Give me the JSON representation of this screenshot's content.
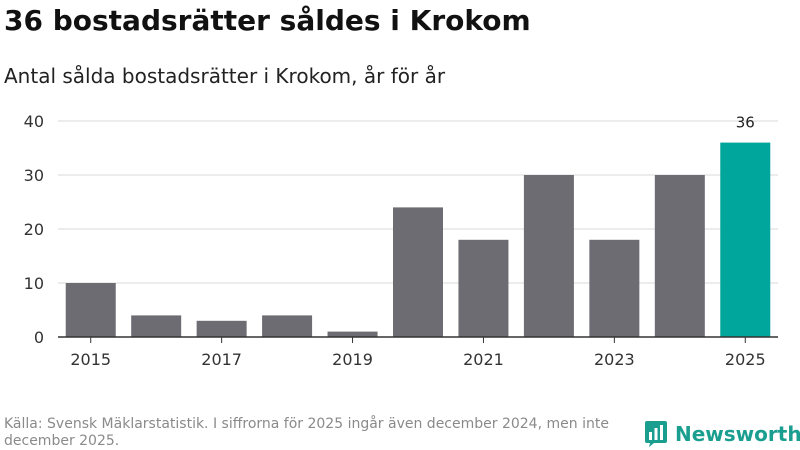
{
  "title": "36 bostadsrätter såldes i Krokom",
  "subtitle": "Antal sålda bostadsrätter i Krokom, år för år",
  "footer": "Källa: Svensk Mäklarstatistik. I siffrorna för 2025 ingår även december 2024, men inte december 2025.",
  "logo": {
    "text": "Newsworthy",
    "color": "#1a9e8f"
  },
  "colors": {
    "bar": "#6d6c72",
    "highlight": "#00a59b",
    "grid": "#d9d9d9",
    "axis": "#333333"
  },
  "chart_data": {
    "type": "bar",
    "categories": [
      "2015",
      "2016",
      "2017",
      "2018",
      "2019",
      "2020",
      "2021",
      "2022",
      "2023",
      "2024",
      "2025"
    ],
    "values": [
      10,
      4,
      3,
      4,
      1,
      24,
      18,
      30,
      18,
      30,
      36
    ],
    "x_tick_labels": [
      "2015",
      "2017",
      "2019",
      "2021",
      "2023",
      "2025"
    ],
    "y_ticks": [
      0,
      10,
      20,
      30,
      40
    ],
    "ylim": [
      0,
      40
    ],
    "highlight_category": "2025",
    "data_labels": [
      {
        "category": "2025",
        "text": "36"
      }
    ],
    "title": "36 bostadsrätter såldes i Krokom",
    "xlabel": "",
    "ylabel": ""
  }
}
